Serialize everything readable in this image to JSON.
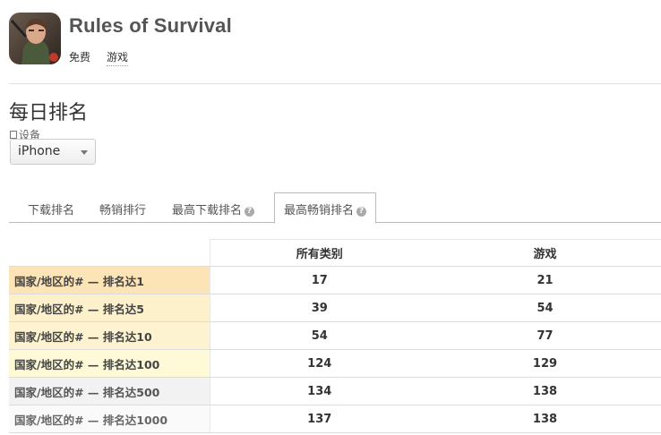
{
  "app": {
    "title": "Rules of Survival",
    "price": "免费",
    "genre": "游戏",
    "icon": "game-character-icon"
  },
  "section": {
    "title": "每日排名",
    "device_label": "设备",
    "device_value": "iPhone"
  },
  "tabs": [
    {
      "label": "下载排名",
      "active": false
    },
    {
      "label": "畅销排行",
      "active": false
    },
    {
      "label": "最高下载排名",
      "active": false,
      "help": true
    },
    {
      "label": "最高畅销排名",
      "active": true,
      "help": true
    }
  ],
  "table": {
    "headers": [
      "",
      "所有类别",
      "游戏"
    ],
    "rows": [
      {
        "label": "国家/地区的# — 排名达1",
        "all": "17",
        "games": "21"
      },
      {
        "label": "国家/地区的# — 排名达5",
        "all": "39",
        "games": "54"
      },
      {
        "label": "国家/地区的# — 排名达10",
        "all": "54",
        "games": "77"
      },
      {
        "label": "国家/地区的# — 排名达100",
        "all": "124",
        "games": "129"
      },
      {
        "label": "国家/地区的# — 排名达500",
        "all": "134",
        "games": "138"
      },
      {
        "label": "国家/地区的# — 排名达1000",
        "all": "137",
        "games": "138"
      }
    ]
  },
  "colors": {
    "rank1": "#fce4b7",
    "rank5": "#fdf1cc",
    "rank10": "#fdf3d0",
    "rank100": "#fefad8",
    "rank500": "#f2f2f2",
    "rank1000": "#fafafa"
  }
}
